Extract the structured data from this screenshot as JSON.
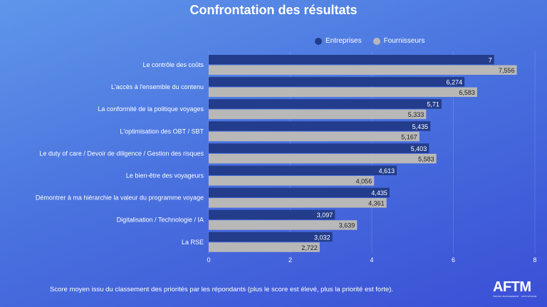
{
  "chart_data": {
    "type": "bar",
    "orientation": "horizontal",
    "title": "Confrontation des résultats",
    "categories": [
      "Le contrôle des coûts",
      "L'accès à l'ensemble du contenu",
      "La conformité de la politique voyages",
      "L'optimisation des OBT / SBT",
      "Le duty of care / Devoir de diligence / Gestion des risques",
      "Le bien-être des voyageurs",
      "Démontrer à ma hiérarchie la valeur du programme voyage",
      "Digitalisation / Technologie / IA",
      "La RSE"
    ],
    "series": [
      {
        "name": "Entreprises",
        "color": "#233d8c",
        "values": [
          7,
          6.274,
          5.71,
          5.435,
          5.403,
          4.613,
          4.435,
          3.097,
          3.032
        ],
        "labels": [
          "7",
          "6,274",
          "5,71",
          "5,435",
          "5,403",
          "4,613",
          "4,435",
          "3,097",
          "3,032"
        ]
      },
      {
        "name": "Fournisseurs",
        "color": "#b8b8b8",
        "values": [
          7.556,
          6.583,
          5.333,
          5.167,
          5.583,
          4.056,
          4.361,
          3.639,
          2.722
        ],
        "labels": [
          "7,556",
          "6,583",
          "5,333",
          "5,167",
          "5,583",
          "4,056",
          "4,361",
          "3,639",
          "2,722"
        ]
      }
    ],
    "xlim": [
      0,
      8
    ],
    "xticks": [
      "0",
      "2",
      "4",
      "6",
      "8"
    ],
    "xtick_values": [
      0,
      2,
      4,
      6,
      8
    ],
    "legend": "top-right",
    "grid": true
  },
  "footnote": "Score moyen issu du classement des priorités par les répondants (plus le score est élevé, plus la priorité est forte).",
  "logo": {
    "text": "AFTM",
    "tagline": "TRAVEL MANAGEMENT · MOTIVATEUR"
  }
}
